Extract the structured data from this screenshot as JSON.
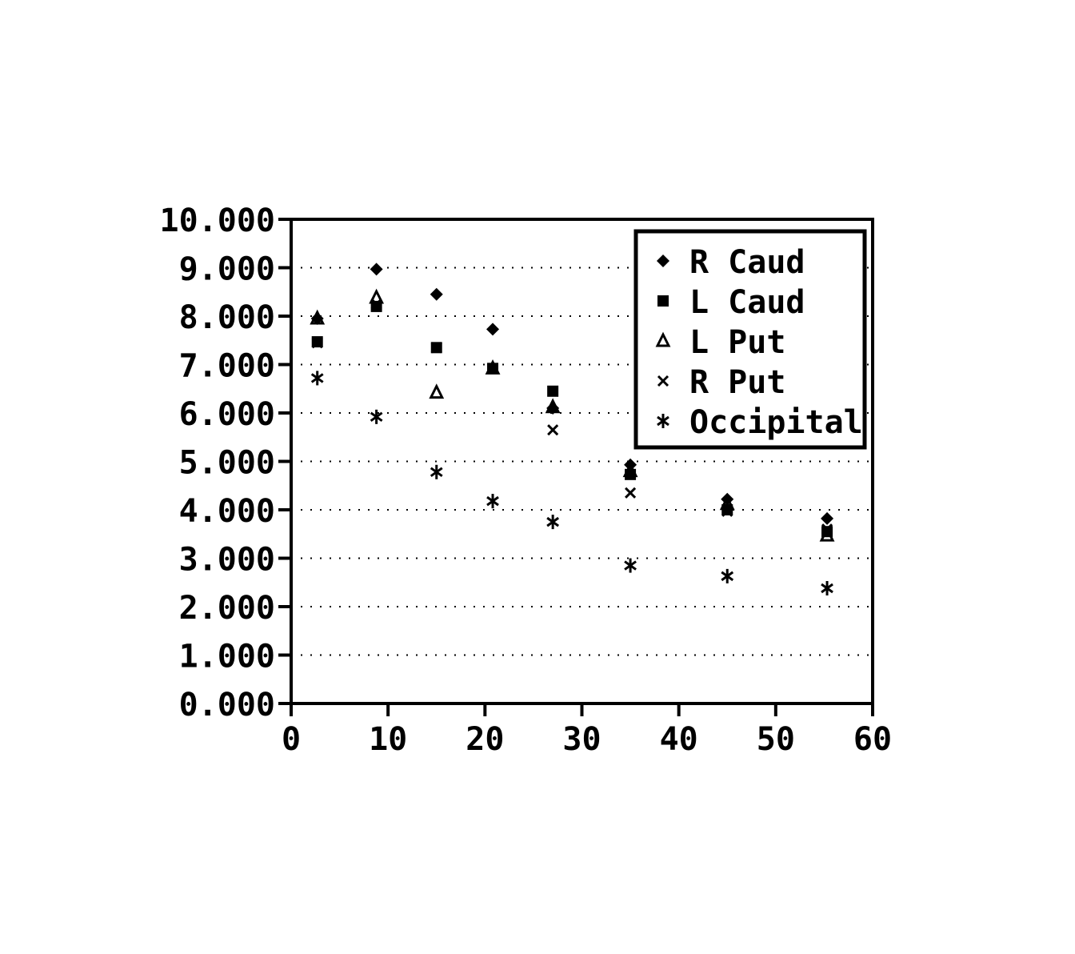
{
  "chart_data": {
    "type": "scatter",
    "title": "",
    "xlabel": "",
    "ylabel": "",
    "xlim": [
      0,
      60
    ],
    "ylim": [
      0,
      10
    ],
    "x_ticks": [
      "0",
      "10",
      "20",
      "30",
      "40",
      "50",
      "60"
    ],
    "y_ticks": [
      "0.000",
      "1.000",
      "2.000",
      "3.000",
      "4.000",
      "5.000",
      "6.000",
      "7.000",
      "8.000",
      "9.000",
      "10.000"
    ],
    "grid": "horizontal dotted",
    "legend_position": "top-right",
    "x": [
      2.7,
      8.8,
      15,
      20.8,
      27,
      35,
      45,
      55.3
    ],
    "series": [
      {
        "name": "R Caud",
        "marker": "diamond",
        "values": [
          7.95,
          8.97,
          8.45,
          7.73,
          6.1,
          4.93,
          4.22,
          3.82
        ]
      },
      {
        "name": "L Caud",
        "marker": "square",
        "values": [
          7.47,
          8.2,
          7.35,
          6.92,
          6.45,
          4.73,
          4.0,
          3.55
        ]
      },
      {
        "name": "L Put",
        "marker": "triangle",
        "values": [
          7.95,
          8.38,
          6.42,
          6.92,
          6.12,
          4.8,
          4.12,
          3.47
        ]
      },
      {
        "name": "R Put",
        "marker": "x",
        "values": [
          7.45,
          8.25,
          7.35,
          6.92,
          5.65,
          4.35,
          3.97,
          3.6
        ]
      },
      {
        "name": "Occipital",
        "marker": "asterisk",
        "values": [
          6.72,
          5.92,
          4.78,
          4.18,
          3.75,
          2.85,
          2.63,
          2.38
        ]
      }
    ],
    "colors": {
      "ink": "#000000",
      "background": "#ffffff"
    }
  }
}
